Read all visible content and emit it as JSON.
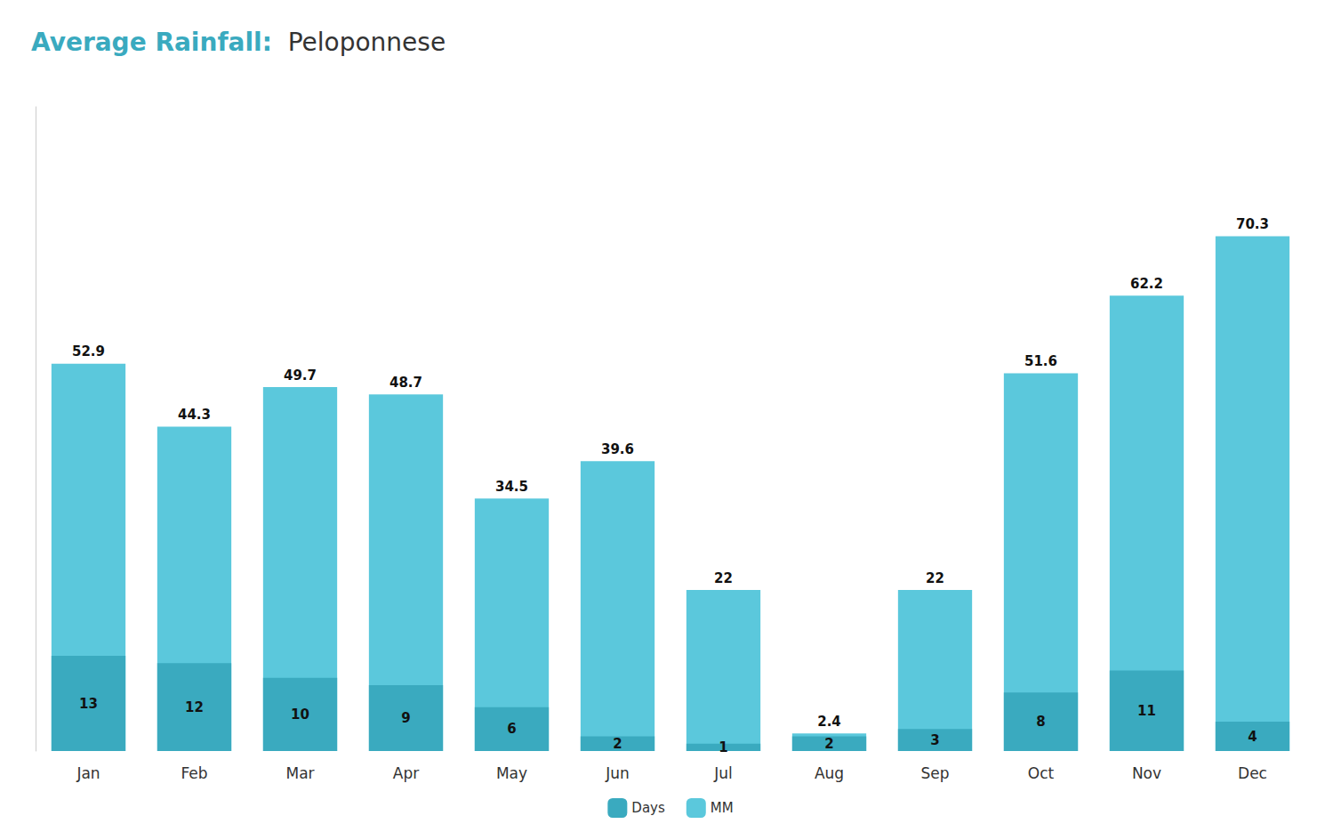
{
  "chart_data": {
    "type": "bar",
    "title": "Average Rainfall:",
    "subtitle": "  Peloponnese",
    "categories": [
      "Jan",
      "Feb",
      "Mar",
      "Apr",
      "May",
      "Jun",
      "Jul",
      "Aug",
      "Sep",
      "Oct",
      "Nov",
      "Dec"
    ],
    "series": [
      {
        "name": "Days",
        "color": "#3AAABF",
        "values": [
          13,
          12,
          10,
          9,
          6,
          2,
          1,
          2,
          3,
          8,
          11,
          4
        ]
      },
      {
        "name": "MM",
        "color": "#5BC8DC",
        "values": [
          52.9,
          44.3,
          49.7,
          48.7,
          34.5,
          39.6,
          22,
          2.4,
          22,
          51.6,
          62.2,
          70.3
        ]
      }
    ],
    "ylim": [
      0,
      88
    ],
    "grid": false,
    "legend": "bottom",
    "data_labels": true,
    "tick_labels": "x"
  }
}
